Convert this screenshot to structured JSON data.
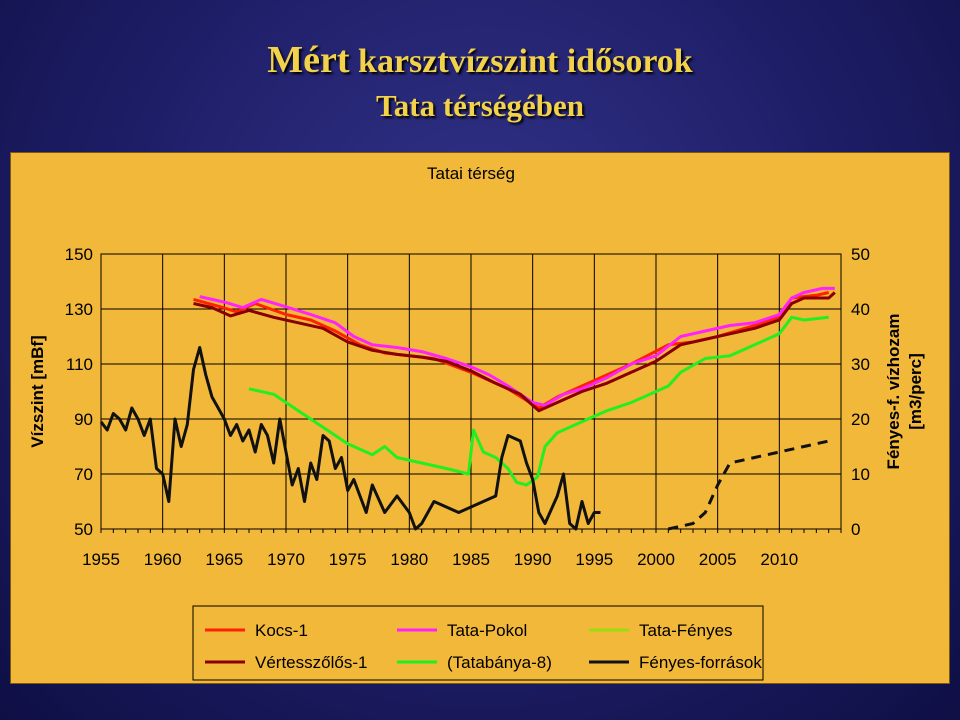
{
  "slide": {
    "title_word1": "Mért",
    "title_rest": "karsztvízszint idősorok",
    "title_line2": "Tata térségében"
  },
  "colors": {
    "background": "#1d1d66",
    "title": "#f2d24a",
    "plot_bg": "#f2b83a"
  },
  "chart_data": {
    "type": "line",
    "title": "Tatai térség",
    "ylabel": "Vízszint [mBf]",
    "y2label_line1": "Fényes-f. vízhozam",
    "y2label_line2": "[m3/perc]",
    "xlim": [
      1955,
      2015
    ],
    "ylim": [
      50,
      150
    ],
    "y2lim": [
      0,
      50
    ],
    "x_ticks": [
      1955,
      1960,
      1965,
      1970,
      1975,
      1980,
      1985,
      1990,
      1995,
      2000,
      2005,
      2010
    ],
    "y_ticks": [
      150,
      130,
      110,
      90,
      70,
      50
    ],
    "y2_ticks": [
      50,
      40,
      30,
      20,
      10,
      0
    ],
    "grid": true,
    "legend_position": "bottom",
    "series": [
      {
        "name": "Kocs-1",
        "color": "#ff2200",
        "width": 3,
        "axis": "left",
        "dash": false,
        "points": [
          [
            1962.5,
            133.5
          ],
          [
            1964.5,
            131
          ],
          [
            1966,
            129
          ],
          [
            1967.5,
            132
          ],
          [
            1970,
            128
          ],
          [
            1972,
            126
          ],
          [
            1974,
            122
          ],
          [
            1976,
            117
          ],
          [
            1978,
            114
          ],
          [
            1980,
            113
          ],
          [
            1982,
            112
          ],
          [
            1985,
            107
          ],
          [
            1988,
            101
          ],
          [
            1990.5,
            94
          ],
          [
            1992,
            98
          ],
          [
            1995,
            104
          ],
          [
            1998,
            110
          ],
          [
            2001,
            117
          ],
          [
            2003,
            118
          ],
          [
            2005,
            120
          ],
          [
            2008,
            124
          ],
          [
            2010,
            127
          ],
          [
            2011,
            134
          ],
          [
            2013,
            135
          ],
          [
            2014,
            136
          ]
        ]
      },
      {
        "name": "Tata-Pokol",
        "color": "#ff22ff",
        "width": 3,
        "axis": "left",
        "dash": false,
        "points": [
          [
            1963,
            134.5
          ],
          [
            1965,
            132.5
          ],
          [
            1966.5,
            130.5
          ],
          [
            1968,
            133.5
          ],
          [
            1969.5,
            131.5
          ],
          [
            1972,
            128
          ],
          [
            1974,
            125
          ],
          [
            1975.5,
            120
          ],
          [
            1977,
            117
          ],
          [
            1979,
            116
          ],
          [
            1981,
            114.5
          ],
          [
            1983,
            112
          ],
          [
            1985,
            109
          ],
          [
            1986.5,
            106
          ],
          [
            1988,
            102
          ],
          [
            1990,
            96
          ],
          [
            1991,
            95
          ],
          [
            1992.5,
            99
          ],
          [
            1994,
            101
          ],
          [
            1996,
            105
          ],
          [
            1998,
            110
          ],
          [
            2000,
            113
          ],
          [
            2002,
            120
          ],
          [
            2004,
            122
          ],
          [
            2006,
            124
          ],
          [
            2008,
            125
          ],
          [
            2010,
            128
          ],
          [
            2011,
            134
          ],
          [
            2012,
            136
          ],
          [
            2013.5,
            137.5
          ],
          [
            2014.5,
            137.5
          ]
        ]
      },
      {
        "name": "Tata-Fényes",
        "color": "#99dd11",
        "width": 2,
        "axis": "left",
        "dash": false,
        "points": []
      },
      {
        "name": "Vértesszőlős-1",
        "color": "#880000",
        "width": 3,
        "axis": "left",
        "dash": false,
        "points": [
          [
            1962.5,
            132
          ],
          [
            1964,
            130.5
          ],
          [
            1965.5,
            127.5
          ],
          [
            1967,
            129.5
          ],
          [
            1969,
            127
          ],
          [
            1971,
            125
          ],
          [
            1973,
            123
          ],
          [
            1975,
            118
          ],
          [
            1977,
            115
          ],
          [
            1979,
            113.5
          ],
          [
            1981,
            112.5
          ],
          [
            1983,
            111
          ],
          [
            1985,
            107.5
          ],
          [
            1987,
            103
          ],
          [
            1989,
            99
          ],
          [
            1990.5,
            93
          ],
          [
            1992,
            96
          ],
          [
            1994,
            100
          ],
          [
            1996,
            103
          ],
          [
            1998,
            107
          ],
          [
            2000,
            111
          ],
          [
            2002,
            117
          ],
          [
            2004,
            119
          ],
          [
            2006,
            121
          ],
          [
            2008,
            123
          ],
          [
            2010,
            126
          ],
          [
            2011,
            132
          ],
          [
            2012,
            134
          ],
          [
            2014,
            134
          ],
          [
            2014.5,
            136
          ]
        ]
      },
      {
        "name": "(Tatabánya-8)",
        "color": "#22ee22",
        "width": 3,
        "axis": "left",
        "dash": false,
        "points": [
          [
            1967,
            101
          ],
          [
            1969,
            99
          ],
          [
            1971,
            93
          ],
          [
            1973,
            87
          ],
          [
            1975,
            81
          ],
          [
            1977,
            77
          ],
          [
            1978,
            80
          ],
          [
            1979,
            76
          ],
          [
            1981,
            74
          ],
          [
            1983,
            72
          ],
          [
            1984.8,
            70
          ],
          [
            1985.2,
            86
          ],
          [
            1986,
            78
          ],
          [
            1987,
            76
          ],
          [
            1988,
            72
          ],
          [
            1988.7,
            67
          ],
          [
            1989.5,
            66
          ],
          [
            1990.4,
            69
          ],
          [
            1991,
            80
          ],
          [
            1992,
            85
          ],
          [
            1994,
            89
          ],
          [
            1996,
            93
          ],
          [
            1998,
            96
          ],
          [
            2000,
            100
          ],
          [
            2001,
            102
          ],
          [
            2002,
            107
          ],
          [
            2004,
            112
          ],
          [
            2006,
            113
          ],
          [
            2008,
            117
          ],
          [
            2010,
            121
          ],
          [
            2011,
            127
          ],
          [
            2012,
            126
          ],
          [
            2014,
            127
          ]
        ]
      },
      {
        "name": "Fényes-források",
        "color": "#111111",
        "width": 3,
        "axis": "right",
        "dash": false,
        "points": [
          [
            1955,
            19.5
          ],
          [
            1955.5,
            18
          ],
          [
            1956,
            21
          ],
          [
            1956.5,
            20
          ],
          [
            1957,
            18
          ],
          [
            1957.5,
            22
          ],
          [
            1958,
            20
          ],
          [
            1958.5,
            17
          ],
          [
            1959,
            20
          ],
          [
            1959.5,
            11
          ],
          [
            1960,
            10
          ],
          [
            1960.5,
            5
          ],
          [
            1961,
            20
          ],
          [
            1961.5,
            15
          ],
          [
            1962,
            19
          ],
          [
            1962.5,
            29
          ],
          [
            1963,
            33
          ],
          [
            1963.5,
            28
          ],
          [
            1964,
            24
          ],
          [
            1964.5,
            22
          ],
          [
            1965,
            20
          ],
          [
            1965.5,
            17
          ],
          [
            1966,
            19
          ],
          [
            1966.5,
            16
          ],
          [
            1967,
            18
          ],
          [
            1967.5,
            14
          ],
          [
            1968,
            19
          ],
          [
            1968.5,
            17
          ],
          [
            1969,
            12
          ],
          [
            1969.5,
            20
          ],
          [
            1970,
            14
          ],
          [
            1970.5,
            8
          ],
          [
            1971,
            11
          ],
          [
            1971.5,
            5
          ],
          [
            1972,
            12
          ],
          [
            1972.5,
            9
          ],
          [
            1973,
            17
          ],
          [
            1973.5,
            16
          ],
          [
            1974,
            11
          ],
          [
            1974.5,
            13
          ],
          [
            1975,
            7
          ],
          [
            1975.5,
            9
          ],
          [
            1976,
            6
          ],
          [
            1976.5,
            3
          ],
          [
            1977,
            8
          ],
          [
            1978,
            3
          ],
          [
            1979,
            6
          ],
          [
            1980,
            3
          ],
          [
            1980.5,
            0
          ],
          [
            1981,
            1
          ],
          [
            1982,
            5
          ],
          [
            1984,
            3
          ],
          [
            1986,
            5
          ],
          [
            1987,
            6
          ],
          [
            1987.5,
            13
          ],
          [
            1988,
            17
          ],
          [
            1989,
            16
          ],
          [
            1989.5,
            12
          ],
          [
            1990,
            9
          ],
          [
            1990.5,
            3
          ],
          [
            1991,
            1
          ],
          [
            1992,
            6
          ],
          [
            1992.5,
            10
          ],
          [
            1993,
            1
          ],
          [
            1993.5,
            0
          ],
          [
            1994,
            5
          ],
          [
            1994.5,
            1
          ],
          [
            1995,
            3
          ],
          [
            1995.5,
            3
          ]
        ]
      },
      {
        "name": "Fényes-források (dashed)",
        "color": "#111111",
        "width": 3,
        "axis": "right",
        "dash": true,
        "points": [
          [
            2001,
            0
          ],
          [
            2003,
            1
          ],
          [
            2004,
            3
          ],
          [
            2005,
            8
          ],
          [
            2006,
            12
          ],
          [
            2008,
            13
          ],
          [
            2010,
            14
          ],
          [
            2012,
            15
          ],
          [
            2014,
            16
          ]
        ]
      }
    ]
  }
}
